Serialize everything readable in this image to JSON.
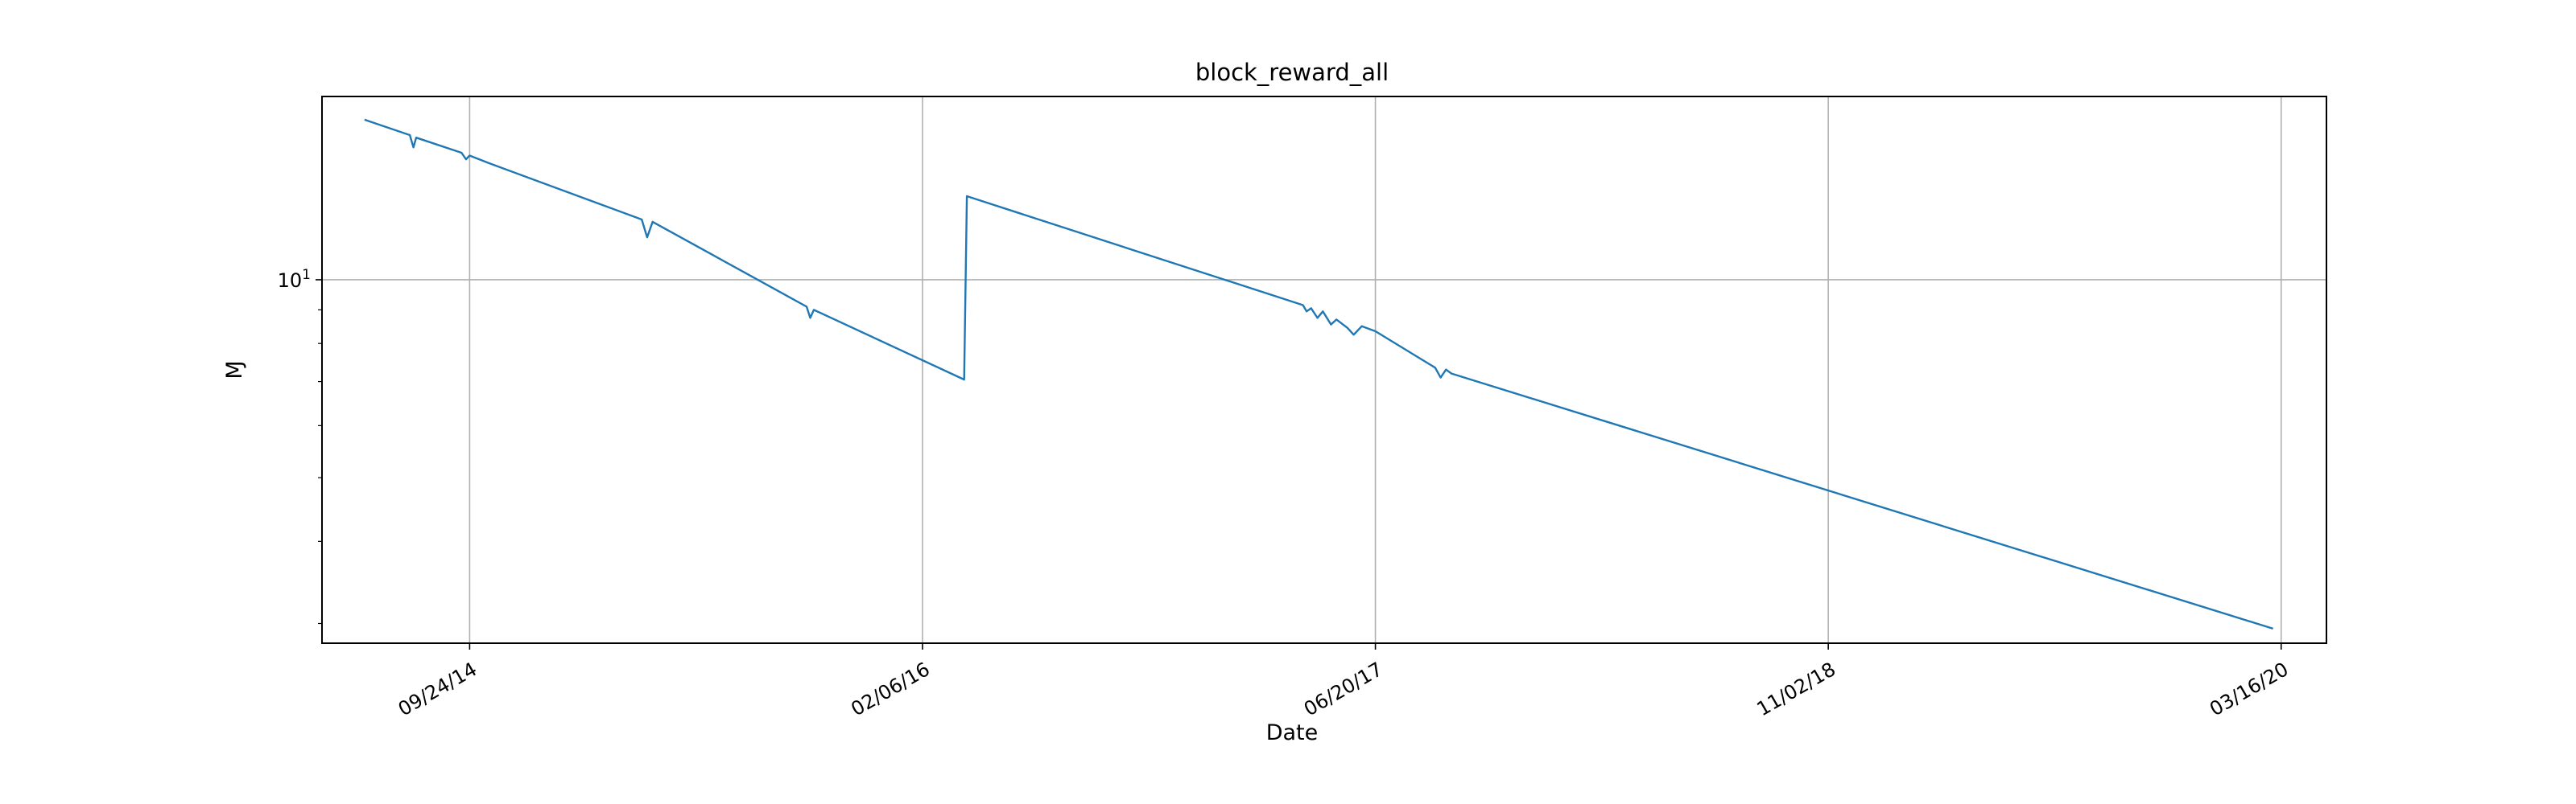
{
  "chart_data": {
    "type": "line",
    "title": "block_reward_all",
    "xlabel": "Date",
    "ylabel": "Ɱ",
    "y_scale": "log",
    "grid": true,
    "xlim": [
      "2014-04-14",
      "2020-05-05"
    ],
    "ylim": [
      2.8,
      19
    ],
    "x_ticks": [
      {
        "date": "2014-09-24",
        "label": "09/24/14"
      },
      {
        "date": "2016-02-06",
        "label": "02/06/16"
      },
      {
        "date": "2017-06-20",
        "label": "06/20/17"
      },
      {
        "date": "2018-11-02",
        "label": "11/02/18"
      },
      {
        "date": "2020-03-16",
        "label": "03/16/20"
      }
    ],
    "y_ticks": [
      {
        "value": 10,
        "label": "10",
        "exponent": "1"
      }
    ],
    "series": [
      {
        "color": "#1f77b4",
        "points": [
          [
            "2014-06-01",
            17.5
          ],
          [
            "2014-07-20",
            16.6
          ],
          [
            "2014-07-24",
            15.9
          ],
          [
            "2014-07-27",
            16.45
          ],
          [
            "2014-09-15",
            15.6
          ],
          [
            "2014-09-20",
            15.25
          ],
          [
            "2014-09-24",
            15.45
          ],
          [
            "2014-10-15",
            15.05
          ],
          [
            "2015-04-02",
            12.35
          ],
          [
            "2015-04-08",
            11.6
          ],
          [
            "2015-04-14",
            12.25
          ],
          [
            "2015-10-01",
            9.1
          ],
          [
            "2015-10-05",
            8.75
          ],
          [
            "2015-10-09",
            9.0
          ],
          [
            "2016-03-23",
            7.05
          ],
          [
            "2016-03-26",
            13.4
          ],
          [
            "2017-04-01",
            9.15
          ],
          [
            "2017-04-05",
            8.95
          ],
          [
            "2017-04-10",
            9.05
          ],
          [
            "2017-04-17",
            8.75
          ],
          [
            "2017-04-23",
            8.95
          ],
          [
            "2017-05-02",
            8.55
          ],
          [
            "2017-05-08",
            8.7
          ],
          [
            "2017-05-20",
            8.45
          ],
          [
            "2017-05-27",
            8.25
          ],
          [
            "2017-06-05",
            8.5
          ],
          [
            "2017-06-20",
            8.35
          ],
          [
            "2017-08-25",
            7.35
          ],
          [
            "2017-08-31",
            7.1
          ],
          [
            "2017-09-06",
            7.3
          ],
          [
            "2017-09-12",
            7.2
          ],
          [
            "2020-03-06",
            2.95
          ]
        ]
      }
    ]
  }
}
